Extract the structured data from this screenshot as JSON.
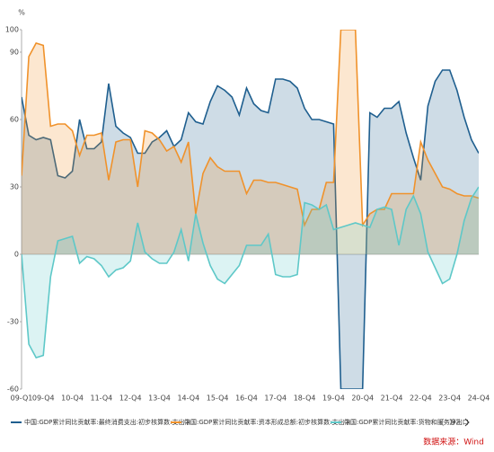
{
  "chart_data": {
    "type": "area",
    "ylabel": "%",
    "categories": [
      "09-Q1",
      null,
      null,
      "09-Q4",
      null,
      null,
      null,
      "10-Q4",
      null,
      null,
      null,
      "11-Q4",
      null,
      null,
      null,
      "12-Q4",
      null,
      null,
      null,
      "13-Q4",
      null,
      null,
      null,
      "14-Q4",
      null,
      null,
      null,
      "15-Q4",
      null,
      null,
      null,
      "16-Q4",
      null,
      null,
      null,
      "17-Q4",
      null,
      null,
      null,
      "18-Q4",
      null,
      null,
      null,
      "19-Q4",
      null,
      null,
      null,
      "20-Q4",
      null,
      null,
      null,
      "21-Q4",
      null,
      null,
      null,
      "22-Q4",
      null,
      null,
      null,
      "23-Q4",
      null,
      null,
      null,
      "24-Q4"
    ],
    "series": [
      {
        "name": "中国:GDP累计同比贡献率:最终消费支出:初步核算数:支出法",
        "color": "#1f5f8f",
        "values": [
          70,
          53,
          51,
          52,
          51,
          35,
          34,
          37,
          60,
          47,
          47,
          50,
          76,
          57,
          54,
          52,
          45,
          45,
          50,
          52,
          55,
          48,
          51,
          63,
          59,
          58,
          68,
          75,
          73,
          70,
          62,
          74,
          67,
          64,
          63,
          78,
          78,
          77,
          74,
          65,
          60,
          60,
          59,
          58,
          -60,
          -60,
          -60,
          -60,
          63,
          61,
          65,
          65,
          68,
          54,
          43,
          33,
          66,
          77,
          82,
          82,
          73,
          61,
          51,
          45
        ]
      },
      {
        "name": "中国:GDP累计同比贡献率:资本形成总额:初步核算数:支出法",
        "color": "#f0922b",
        "values": [
          35,
          88,
          94,
          93,
          57,
          58,
          58,
          55,
          44,
          53,
          53,
          54,
          33,
          50,
          51,
          51,
          30,
          55,
          54,
          51,
          46,
          48,
          41,
          50,
          18,
          36,
          43,
          39,
          37,
          37,
          37,
          27,
          33,
          33,
          32,
          32,
          31,
          30,
          29,
          13,
          20,
          20,
          32,
          32,
          100,
          100,
          100,
          13,
          18,
          20,
          20,
          27,
          27,
          27,
          27,
          50,
          42,
          36,
          30,
          29,
          27,
          26,
          26,
          25
        ]
      },
      {
        "name": "中国:GDP累计同比贡献率:货物和服务净出口",
        "color": "#5ec8c8",
        "values": [
          0,
          -40,
          -46,
          -45,
          -10,
          6,
          7,
          8,
          -4,
          -1,
          -2,
          -5,
          -10,
          -7,
          -6,
          -3,
          14,
          1,
          -2,
          -4,
          -4,
          1,
          11,
          -3,
          18,
          5,
          -5,
          -11,
          -13,
          -9,
          -5,
          4,
          4,
          4,
          9,
          -9,
          -10,
          -10,
          -9,
          23,
          22,
          20,
          22,
          11,
          12,
          13,
          14,
          13,
          12,
          20,
          21,
          20,
          4,
          20,
          26,
          18,
          1,
          -6,
          -13,
          -11,
          0,
          15,
          25,
          30
        ]
      }
    ],
    "ylim": [
      -60,
      100
    ],
    "yticks": [
      -60,
      -30,
      0,
      30,
      60,
      90,
      100
    ],
    "legend_page": "1/2",
    "source": "数据来源：Wind"
  }
}
